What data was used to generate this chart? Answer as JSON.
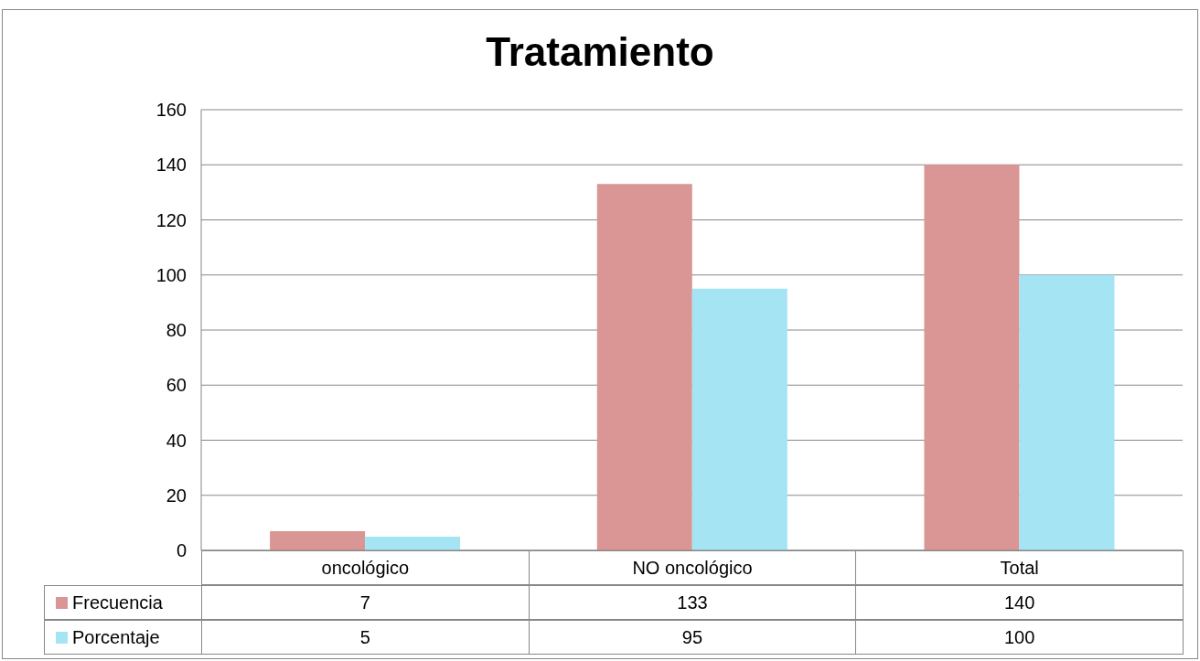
{
  "chart_data": {
    "type": "bar",
    "title": "Tratamiento",
    "categories": [
      "oncológico",
      "NO oncológico",
      "Total"
    ],
    "series": [
      {
        "name": "Frecuencia",
        "color": "#d99694",
        "values": [
          7,
          133,
          140
        ]
      },
      {
        "name": "Porcentaje",
        "color": "#a5e4f2",
        "values": [
          5,
          95,
          100
        ]
      }
    ],
    "ylim": [
      0,
      160
    ],
    "yticks": [
      0,
      20,
      40,
      60,
      80,
      100,
      120,
      140,
      160
    ],
    "grid": "y",
    "data_labels": true,
    "legend": "bottom"
  }
}
